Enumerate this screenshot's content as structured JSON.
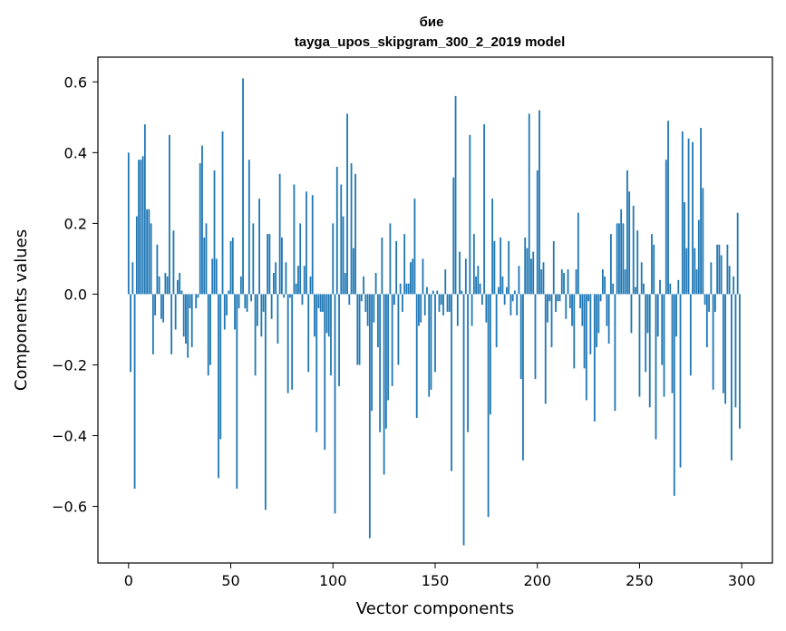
{
  "chart_data": {
    "type": "bar",
    "title_line1": "бие",
    "title_line2": "tayga_upos_skipgram_300_2_2019 model",
    "xlabel": "Vector components",
    "ylabel": "Components values",
    "xlim": [
      -15,
      315
    ],
    "ylim": [
      -0.76,
      0.67
    ],
    "xticks": [
      0,
      50,
      100,
      150,
      200,
      250,
      300
    ],
    "yticks": [
      -0.6,
      -0.4,
      -0.2,
      0.0,
      0.2,
      0.4,
      0.6
    ],
    "ytick_labels": [
      "−0.6",
      "−0.4",
      "−0.2",
      "0.0",
      "0.2",
      "0.4",
      "0.6"
    ],
    "bar_color": "#1f77b4",
    "values": [
      0.4,
      -0.22,
      0.09,
      -0.55,
      0.22,
      0.38,
      0.38,
      0.39,
      0.48,
      0.24,
      0.24,
      0.2,
      -0.17,
      -0.06,
      0.14,
      0.05,
      -0.07,
      -0.08,
      0.06,
      0.05,
      0.45,
      -0.17,
      0.18,
      -0.1,
      0.04,
      0.06,
      0.01,
      -0.12,
      -0.14,
      -0.18,
      -0.04,
      -0.15,
      0.0,
      -0.04,
      -0.01,
      0.37,
      0.42,
      0.16,
      0.2,
      -0.23,
      -0.2,
      0.1,
      0.35,
      0.1,
      -0.52,
      -0.41,
      0.46,
      -0.1,
      -0.06,
      0.01,
      0.15,
      0.16,
      -0.1,
      -0.55,
      -0.04,
      0.05,
      0.61,
      -0.04,
      -0.05,
      0.38,
      -0.02,
      0.2,
      -0.23,
      -0.09,
      0.27,
      -0.12,
      -0.05,
      -0.61,
      0.17,
      0.17,
      -0.07,
      0.06,
      0.09,
      -0.14,
      0.34,
      0.16,
      -0.01,
      0.09,
      -0.28,
      -0.01,
      -0.27,
      0.31,
      0.03,
      0.08,
      0.2,
      -0.03,
      0.08,
      0.29,
      -0.22,
      0.05,
      0.28,
      -0.12,
      -0.39,
      -0.04,
      -0.05,
      -0.05,
      -0.44,
      -0.11,
      -0.12,
      -0.23,
      0.2,
      -0.62,
      0.36,
      -0.26,
      0.31,
      0.22,
      0.06,
      0.51,
      -0.03,
      0.37,
      0.13,
      0.34,
      -0.2,
      -0.2,
      -0.02,
      0.05,
      -0.05,
      -0.09,
      -0.69,
      -0.33,
      -0.08,
      0.06,
      -0.15,
      -0.39,
      0.16,
      -0.51,
      -0.38,
      -0.3,
      0.2,
      -0.26,
      -0.03,
      0.15,
      -0.2,
      0.03,
      -0.05,
      0.17,
      0.03,
      0.03,
      0.09,
      0.1,
      0.27,
      -0.35,
      -0.09,
      -0.08,
      0.1,
      -0.06,
      0.02,
      -0.29,
      -0.27,
      0.01,
      -0.22,
      0.01,
      -0.05,
      -0.03,
      -0.06,
      0.07,
      -0.05,
      -0.05,
      -0.5,
      0.33,
      0.56,
      -0.09,
      0.12,
      0.01,
      -0.71,
      0.1,
      -0.39,
      0.45,
      -0.09,
      0.17,
      0.05,
      0.08,
      0.03,
      -0.03,
      0.48,
      -0.08,
      -0.63,
      -0.34,
      0.27,
      0.15,
      -0.15,
      0.02,
      0.16,
      0.05,
      -0.03,
      0.02,
      0.15,
      -0.06,
      -0.02,
      0.01,
      -0.06,
      0.08,
      -0.24,
      -0.47,
      0.16,
      0.13,
      0.51,
      0.1,
      0.12,
      -0.24,
      0.35,
      0.52,
      0.07,
      0.09,
      -0.31,
      -0.08,
      -0.02,
      -0.15,
      0.15,
      -0.05,
      -0.02,
      -0.02,
      0.07,
      0.06,
      -0.07,
      0.07,
      -0.04,
      -0.09,
      -0.21,
      0.07,
      0.23,
      -0.04,
      -0.09,
      -0.21,
      -0.3,
      -0.02,
      -0.17,
      0.0,
      -0.36,
      -0.15,
      -0.11,
      -0.02,
      0.07,
      0.05,
      -0.09,
      -0.14,
      0.17,
      0.03,
      -0.33,
      0.2,
      0.2,
      0.24,
      0.2,
      0.07,
      0.35,
      0.29,
      -0.11,
      0.25,
      0.02,
      0.18,
      -0.29,
      0.09,
      0.03,
      -0.22,
      -0.11,
      -0.32,
      0.17,
      0.14,
      -0.41,
      -0.12,
      0.04,
      -0.2,
      -0.29,
      0.38,
      0.49,
      0.03,
      -0.28,
      -0.57,
      -0.12,
      0.04,
      -0.49,
      0.46,
      0.26,
      0.13,
      0.44,
      -0.23,
      0.43,
      0.13,
      0.07,
      0.21,
      0.47,
      0.3,
      -0.03,
      -0.15,
      -0.05,
      0.09,
      -0.27,
      -0.05,
      0.14,
      0.14,
      0.11,
      -0.28,
      -0.31,
      0.14,
      0.08,
      -0.47,
      0.05,
      -0.32,
      0.23,
      -0.38
    ]
  }
}
